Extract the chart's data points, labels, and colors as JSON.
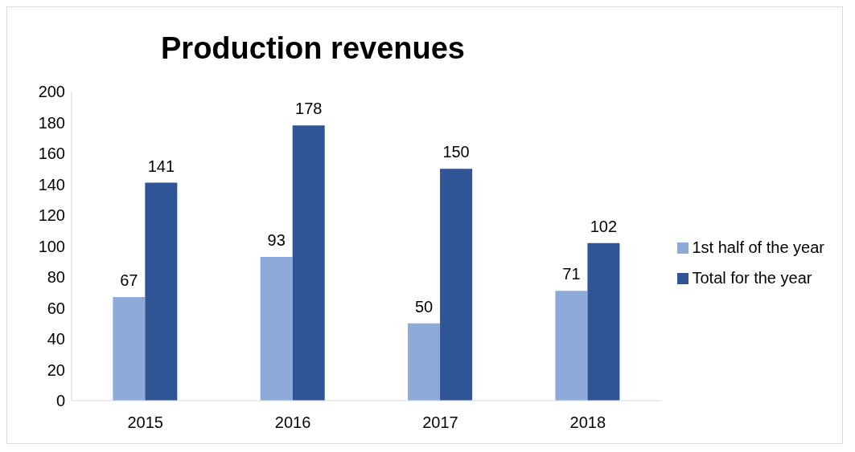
{
  "chart_data": {
    "type": "bar",
    "title": "Production revenues",
    "categories": [
      "2015",
      "2016",
      "2017",
      "2018"
    ],
    "series": [
      {
        "name": "1st half of the year",
        "color": "#8eaadb",
        "values": [
          67,
          93,
          50,
          71
        ]
      },
      {
        "name": "Total for the year",
        "color": "#2f5597",
        "values": [
          141,
          178,
          150,
          102
        ]
      }
    ],
    "ylim": [
      0,
      200
    ],
    "yticks": [
      0,
      20,
      40,
      60,
      80,
      100,
      120,
      140,
      160,
      180,
      200
    ],
    "grid": false,
    "legend": "right",
    "data_labels": true
  }
}
